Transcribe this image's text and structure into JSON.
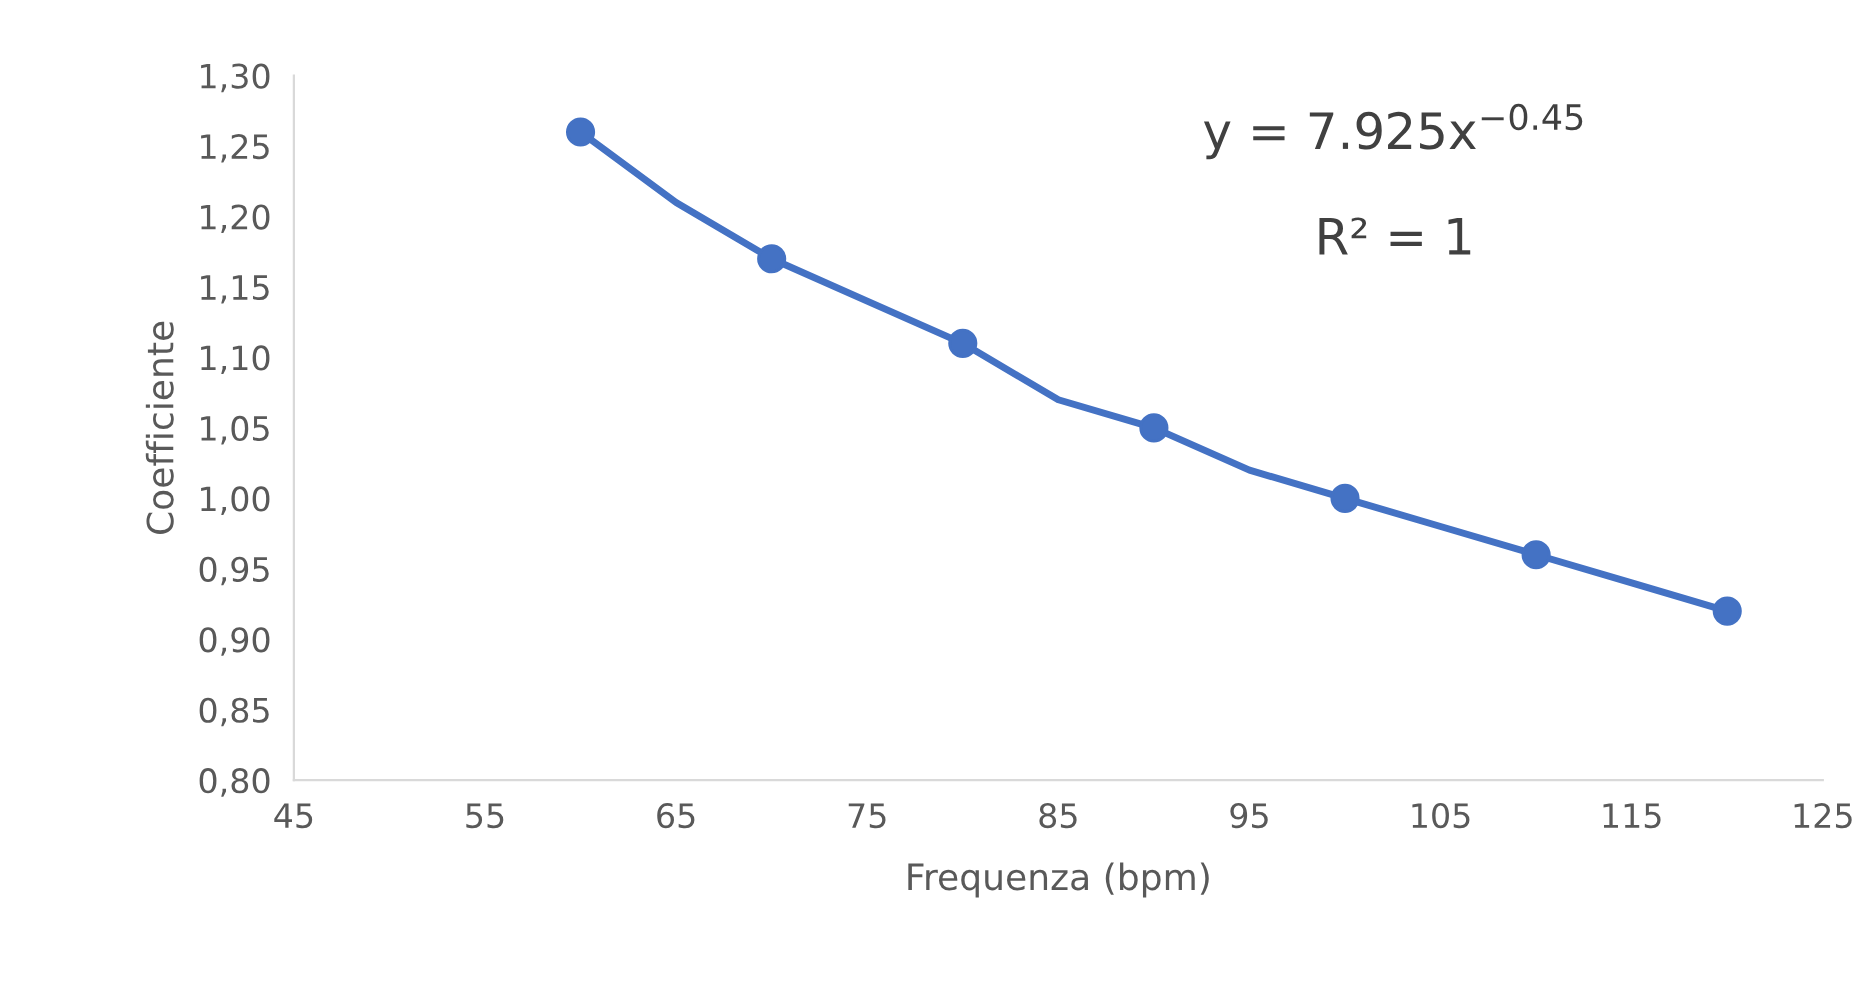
{
  "chart_data": {
    "type": "scatter",
    "xlabel": "Frequenza (bpm)",
    "ylabel": "Coefficiente",
    "x": [
      60,
      70,
      80,
      90,
      100,
      110,
      120
    ],
    "series": [
      {
        "color": "#4472c4",
        "values": [
          1.26,
          1.17,
          1.11,
          1.05,
          1.0,
          0.96,
          0.92
        ],
        "marker": "circle"
      },
      {
        "type": "line",
        "color": "#4472c4",
        "x": [
          60,
          65,
          70,
          75,
          80,
          85,
          90,
          95,
          100,
          105,
          110,
          115,
          120
        ],
        "values": [
          1.26,
          1.21,
          1.17,
          1.14,
          1.11,
          1.07,
          1.05,
          1.02,
          1.0,
          0.98,
          0.96,
          0.94,
          0.92
        ],
        "line_style": "solid"
      }
    ],
    "annotations": [
      "y = 7.925x$^{−0.45}$",
      "R² = 1"
    ],
    "xlim": [
      45,
      125
    ],
    "xticks": [
      45,
      55,
      65,
      75,
      85,
      95,
      105,
      115,
      125
    ],
    "ylim": [
      0.8,
      1.3
    ],
    "yticks": [
      {
        "value": 0.8,
        "label": "0,80"
      },
      {
        "value": 0.85,
        "label": "0,85"
      },
      {
        "value": 0.9,
        "label": "0,90"
      },
      {
        "value": 0.95,
        "label": "0,95"
      },
      {
        "value": 1.0,
        "label": "1,00"
      },
      {
        "value": 1.05,
        "label": "1,05"
      },
      {
        "value": 1.1,
        "label": "1,10"
      },
      {
        "value": 1.15,
        "label": "1,15"
      },
      {
        "value": 1.2,
        "label": "1,20"
      },
      {
        "value": 1.25,
        "label": "1,25"
      },
      {
        "value": 1.3,
        "label": "1,30"
      }
    ],
    "grid": false,
    "legend": false
  }
}
